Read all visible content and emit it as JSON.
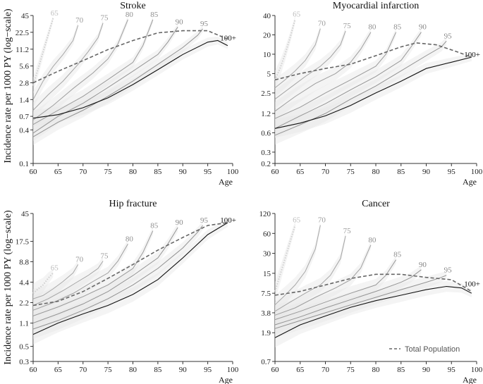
{
  "figure": {
    "ylabel": "Incidence rate per 1000 PY (log−scale)",
    "legend": {
      "label": "Total Population",
      "placement": "bottom-right of Cancer panel"
    }
  },
  "chart_data": [
    {
      "type": "line",
      "title": "Stroke",
      "xlabel": "Age",
      "yscale": "log",
      "xlim": [
        60,
        100
      ],
      "ylim": [
        0.1,
        45
      ],
      "xticks": [
        60,
        65,
        70,
        75,
        80,
        85,
        90,
        95,
        100
      ],
      "yticks": [
        0.1,
        0.4,
        0.7,
        1.4,
        2.8,
        5.6,
        11.2,
        22.5,
        45
      ],
      "series": [
        {
          "name": "65",
          "dotted": true,
          "x": [
            60,
            61,
            62,
            63,
            64
          ],
          "y": [
            2.5,
            5,
            10,
            20,
            40
          ]
        },
        {
          "name": "70",
          "x": [
            60,
            62,
            64,
            66,
            68,
            69
          ],
          "y": [
            1.4,
            3,
            5.5,
            9,
            16,
            30
          ]
        },
        {
          "name": "75",
          "x": [
            60,
            63,
            66,
            69,
            71,
            73,
            74
          ],
          "y": [
            0.9,
            1.7,
            3,
            6,
            10,
            18,
            33
          ]
        },
        {
          "name": "80",
          "x": [
            60,
            64,
            68,
            72,
            75,
            77,
            79
          ],
          "y": [
            0.6,
            1.1,
            2.2,
            4.2,
            7.5,
            14,
            38
          ]
        },
        {
          "name": "85",
          "x": [
            60,
            65,
            70,
            75,
            80,
            82,
            84
          ],
          "y": [
            0.5,
            0.9,
            1.6,
            3.2,
            6.5,
            13,
            38
          ]
        },
        {
          "name": "90",
          "x": [
            60,
            65,
            70,
            75,
            80,
            85,
            87,
            89
          ],
          "y": [
            0.35,
            0.7,
            1.2,
            2.3,
            4.5,
            9,
            15,
            28
          ]
        },
        {
          "name": "95",
          "x": [
            60,
            65,
            70,
            75,
            80,
            85,
            90,
            93,
            94
          ],
          "y": [
            0.3,
            0.55,
            0.9,
            1.6,
            3,
            6,
            12,
            20,
            26
          ]
        },
        {
          "name": "100+",
          "solid_black": true,
          "x": [
            60,
            65,
            70,
            75,
            80,
            85,
            90,
            95,
            97,
            99
          ],
          "y": [
            0.65,
            0.75,
            1.0,
            1.5,
            2.6,
            4.8,
            9,
            15,
            16,
            13
          ]
        },
        {
          "name": "Total Population",
          "dashed": true,
          "x": [
            60,
            65,
            70,
            75,
            80,
            85,
            90,
            95,
            99
          ],
          "y": [
            2.8,
            4.5,
            7,
            11,
            16,
            22,
            24,
            24,
            17
          ]
        }
      ]
    },
    {
      "type": "line",
      "title": "Myocardial infarction",
      "xlabel": "Age",
      "yscale": "log",
      "xlim": [
        60,
        100
      ],
      "ylim": [
        0.2,
        40
      ],
      "xticks": [
        60,
        65,
        70,
        75,
        80,
        85,
        90,
        95,
        100
      ],
      "yticks": [
        0.2,
        0.3,
        0.6,
        1.2,
        2.5,
        5,
        10,
        20,
        40
      ],
      "series": [
        {
          "name": "65",
          "dotted": true,
          "x": [
            60,
            61,
            62,
            63,
            64
          ],
          "y": [
            4,
            6,
            10,
            18,
            35
          ]
        },
        {
          "name": "70",
          "x": [
            60,
            62,
            64,
            66,
            68,
            69
          ],
          "y": [
            3,
            4,
            5.5,
            8,
            14,
            25
          ]
        },
        {
          "name": "75",
          "x": [
            60,
            63,
            66,
            69,
            71,
            73,
            74
          ],
          "y": [
            2,
            3,
            4.5,
            6.5,
            9,
            14,
            23
          ]
        },
        {
          "name": "80",
          "x": [
            60,
            64,
            68,
            72,
            75,
            77,
            79
          ],
          "y": [
            1.3,
            2.2,
            3.5,
            5,
            7.5,
            12,
            22
          ]
        },
        {
          "name": "85",
          "x": [
            60,
            65,
            70,
            75,
            80,
            82,
            84
          ],
          "y": [
            1.0,
            1.5,
            2.5,
            4,
            6.5,
            10,
            22
          ]
        },
        {
          "name": "90",
          "x": [
            60,
            65,
            70,
            75,
            80,
            85,
            87,
            89
          ],
          "y": [
            0.7,
            1.1,
            1.7,
            2.8,
            4.5,
            8,
            13,
            22
          ]
        },
        {
          "name": "95",
          "x": [
            60,
            65,
            70,
            75,
            80,
            85,
            90,
            93,
            94
          ],
          "y": [
            0.55,
            0.8,
            1.2,
            2,
            3.2,
            5.5,
            9.5,
            13,
            16
          ]
        },
        {
          "name": "100+",
          "solid_black": true,
          "x": [
            60,
            65,
            70,
            75,
            80,
            85,
            90,
            95,
            99
          ],
          "y": [
            0.7,
            0.85,
            1.1,
            1.6,
            2.5,
            3.8,
            6,
            7.5,
            9
          ]
        },
        {
          "name": "Total Population",
          "dashed": true,
          "x": [
            60,
            65,
            70,
            75,
            80,
            85,
            88,
            92,
            96,
            99
          ],
          "y": [
            4,
            5,
            6,
            7,
            9.5,
            13,
            15,
            14,
            11,
            9
          ]
        }
      ]
    },
    {
      "type": "line",
      "title": "Hip fracture",
      "xlabel": "Age",
      "yscale": "log",
      "xlim": [
        60,
        100
      ],
      "ylim": [
        0.3,
        45
      ],
      "xticks": [
        60,
        65,
        70,
        75,
        80,
        85,
        90,
        95,
        100
      ],
      "yticks": [
        0.3,
        0.5,
        1.1,
        2.2,
        4.4,
        8.8,
        17.5,
        45
      ],
      "series": [
        {
          "name": "65",
          "dotted": true,
          "x": [
            60,
            61,
            62,
            63,
            64
          ],
          "y": [
            3,
            3.5,
            4,
            5,
            6
          ]
        },
        {
          "name": "70",
          "x": [
            60,
            62,
            64,
            66,
            68,
            69
          ],
          "y": [
            2.5,
            2.8,
            3.5,
            4.5,
            6,
            8
          ]
        },
        {
          "name": "75",
          "x": [
            60,
            63,
            66,
            69,
            71,
            73,
            74
          ],
          "y": [
            2,
            2.5,
            3.3,
            4.5,
            5.5,
            7,
            9
          ]
        },
        {
          "name": "80",
          "x": [
            60,
            64,
            68,
            72,
            75,
            77,
            79
          ],
          "y": [
            1.7,
            2.2,
            3,
            4.5,
            6,
            9,
            16
          ]
        },
        {
          "name": "85",
          "x": [
            60,
            65,
            70,
            75,
            80,
            82,
            84
          ],
          "y": [
            1.4,
            1.9,
            2.7,
            4,
            7,
            12,
            25
          ]
        },
        {
          "name": "90",
          "x": [
            60,
            65,
            70,
            75,
            80,
            85,
            87,
            89
          ],
          "y": [
            1.1,
            1.5,
            2.1,
            3.2,
            5.5,
            10,
            16,
            28
          ]
        },
        {
          "name": "95",
          "x": [
            60,
            65,
            70,
            75,
            80,
            85,
            90,
            93,
            94
          ],
          "y": [
            0.9,
            1.2,
            1.7,
            2.5,
            4,
            7,
            14,
            24,
            30
          ]
        },
        {
          "name": "100+",
          "solid_black": true,
          "x": [
            60,
            65,
            70,
            75,
            80,
            85,
            90,
            95,
            99
          ],
          "y": [
            0.75,
            1.1,
            1.5,
            2.0,
            2.9,
            4.8,
            10,
            22,
            33
          ]
        },
        {
          "name": "Total Population",
          "dashed": true,
          "x": [
            60,
            65,
            70,
            75,
            80,
            85,
            90,
            95,
            99
          ],
          "y": [
            2,
            2.3,
            3.2,
            5,
            8,
            13,
            20,
            30,
            33
          ]
        }
      ]
    },
    {
      "type": "line",
      "title": "Cancer",
      "xlabel": "Age",
      "yscale": "log",
      "xlim": [
        60,
        100
      ],
      "ylim": [
        0.7,
        120
      ],
      "xticks": [
        60,
        65,
        70,
        75,
        80,
        85,
        90,
        95,
        100
      ],
      "yticks": [
        0.7,
        1.9,
        3.8,
        7.5,
        15,
        30,
        60,
        120
      ],
      "series": [
        {
          "name": "65",
          "dotted": true,
          "x": [
            60,
            61,
            62,
            63,
            64
          ],
          "y": [
            8,
            14,
            25,
            45,
            80
          ]
        },
        {
          "name": "70",
          "x": [
            60,
            62,
            64,
            66,
            68,
            69
          ],
          "y": [
            5,
            7,
            10,
            16,
            35,
            80
          ]
        },
        {
          "name": "75",
          "x": [
            60,
            63,
            66,
            69,
            71,
            73,
            74
          ],
          "y": [
            4,
            5.5,
            7.5,
            10,
            14,
            25,
            55
          ]
        },
        {
          "name": "80",
          "x": [
            60,
            64,
            68,
            72,
            75,
            77,
            79
          ],
          "y": [
            3.5,
            4.5,
            6.5,
            9,
            12,
            18,
            40
          ]
        },
        {
          "name": "85",
          "x": [
            60,
            65,
            70,
            75,
            80,
            82,
            84
          ],
          "y": [
            3,
            4,
            5.5,
            7.5,
            10,
            14,
            24
          ]
        },
        {
          "name": "90",
          "x": [
            60,
            65,
            70,
            75,
            80,
            85,
            87,
            89
          ],
          "y": [
            2.5,
            3.3,
            4.5,
            6,
            8,
            11,
            13,
            17
          ]
        },
        {
          "name": "95",
          "x": [
            60,
            65,
            70,
            75,
            80,
            85,
            90,
            93,
            94
          ],
          "y": [
            2.2,
            2.9,
            3.8,
            5,
            6.5,
            8.5,
            11,
            13,
            14
          ]
        },
        {
          "name": "100+",
          "solid_black": true,
          "x": [
            60,
            65,
            70,
            75,
            80,
            85,
            90,
            94,
            97,
            99
          ],
          "y": [
            1.6,
            2.5,
            3.4,
            4.6,
            5.8,
            7,
            8.5,
            9.5,
            9,
            7.5
          ]
        },
        {
          "name": "Total Population",
          "dashed": true,
          "x": [
            60,
            65,
            70,
            75,
            80,
            85,
            90,
            95,
            99
          ],
          "y": [
            7,
            8,
            10,
            12.5,
            14.5,
            14.5,
            13,
            12,
            8
          ]
        }
      ]
    }
  ]
}
